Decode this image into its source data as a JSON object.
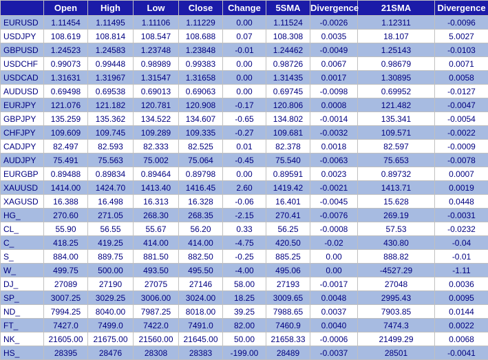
{
  "headers": [
    "",
    "Open",
    "High",
    "Low",
    "Close",
    "Change",
    "5SMA",
    "Divergence",
    "21SMA",
    "Divergence"
  ],
  "rows": [
    [
      "EURUSD",
      "1.11454",
      "1.11495",
      "1.11106",
      "1.11229",
      "0.00",
      "1.11524",
      "-0.0026",
      "1.12311",
      "-0.0096"
    ],
    [
      "USDJPY",
      "108.619",
      "108.814",
      "108.547",
      "108.688",
      "0.07",
      "108.308",
      "0.0035",
      "18.107",
      "5.0027"
    ],
    [
      "GBPUSD",
      "1.24523",
      "1.24583",
      "1.23748",
      "1.23848",
      "-0.01",
      "1.24462",
      "-0.0049",
      "1.25143",
      "-0.0103"
    ],
    [
      "USDCHF",
      "0.99073",
      "0.99448",
      "0.98989",
      "0.99383",
      "0.00",
      "0.98726",
      "0.0067",
      "0.98679",
      "0.0071"
    ],
    [
      "USDCAD",
      "1.31631",
      "1.31967",
      "1.31547",
      "1.31658",
      "0.00",
      "1.31435",
      "0.0017",
      "1.30895",
      "0.0058"
    ],
    [
      "AUDUSD",
      "0.69498",
      "0.69538",
      "0.69013",
      "0.69063",
      "0.00",
      "0.69745",
      "-0.0098",
      "0.69952",
      "-0.0127"
    ],
    [
      "EURJPY",
      "121.076",
      "121.182",
      "120.781",
      "120.908",
      "-0.17",
      "120.806",
      "0.0008",
      "121.482",
      "-0.0047"
    ],
    [
      "GBPJPY",
      "135.259",
      "135.362",
      "134.522",
      "134.607",
      "-0.65",
      "134.802",
      "-0.0014",
      "135.341",
      "-0.0054"
    ],
    [
      "CHFJPY",
      "109.609",
      "109.745",
      "109.289",
      "109.335",
      "-0.27",
      "109.681",
      "-0.0032",
      "109.571",
      "-0.0022"
    ],
    [
      "CADJPY",
      "82.497",
      "82.593",
      "82.333",
      "82.525",
      "0.01",
      "82.378",
      "0.0018",
      "82.597",
      "-0.0009"
    ],
    [
      "AUDJPY",
      "75.491",
      "75.563",
      "75.002",
      "75.064",
      "-0.45",
      "75.540",
      "-0.0063",
      "75.653",
      "-0.0078"
    ],
    [
      "EURGBP",
      "0.89488",
      "0.89834",
      "0.89464",
      "0.89798",
      "0.00",
      "0.89591",
      "0.0023",
      "0.89732",
      "0.0007"
    ],
    [
      "XAUUSD",
      "1414.00",
      "1424.70",
      "1413.40",
      "1416.45",
      "2.60",
      "1419.42",
      "-0.0021",
      "1413.71",
      "0.0019"
    ],
    [
      "XAGUSD",
      "16.388",
      "16.498",
      "16.313",
      "16.328",
      "-0.06",
      "16.401",
      "-0.0045",
      "15.628",
      "0.0448"
    ],
    [
      "HG_",
      "270.60",
      "271.05",
      "268.30",
      "268.35",
      "-2.15",
      "270.41",
      "-0.0076",
      "269.19",
      "-0.0031"
    ],
    [
      "CL_",
      "55.90",
      "56.55",
      "55.67",
      "56.20",
      "0.33",
      "56.25",
      "-0.0008",
      "57.53",
      "-0.0232"
    ],
    [
      "C_",
      "418.25",
      "419.25",
      "414.00",
      "414.00",
      "-4.75",
      "420.50",
      "-0.02",
      "430.80",
      "-0.04"
    ],
    [
      "S_",
      "884.00",
      "889.75",
      "881.50",
      "882.50",
      "-0.25",
      "885.25",
      "0.00",
      "888.82",
      "-0.01"
    ],
    [
      "W_",
      "499.75",
      "500.00",
      "493.50",
      "495.50",
      "-4.00",
      "495.06",
      "0.00",
      "-4527.29",
      "-1.11"
    ],
    [
      "DJ_",
      "27089",
      "27190",
      "27075",
      "27146",
      "58.00",
      "27193",
      "-0.0017",
      "27048",
      "0.0036"
    ],
    [
      "SP_",
      "3007.25",
      "3029.25",
      "3006.00",
      "3024.00",
      "18.25",
      "3009.65",
      "0.0048",
      "2995.43",
      "0.0095"
    ],
    [
      "ND_",
      "7994.25",
      "8040.00",
      "7987.25",
      "8018.00",
      "39.25",
      "7988.65",
      "0.0037",
      "7903.85",
      "0.0144"
    ],
    [
      "FT_",
      "7427.0",
      "7499.0",
      "7422.0",
      "7491.0",
      "82.00",
      "7460.9",
      "0.0040",
      "7474.3",
      "0.0022"
    ],
    [
      "NK_",
      "21605.00",
      "21675.00",
      "21560.00",
      "21645.00",
      "50.00",
      "21658.33",
      "-0.0006",
      "21499.29",
      "0.0068"
    ],
    [
      "HS_",
      "28395",
      "28476",
      "28308",
      "28383",
      "-199.00",
      "28489",
      "-0.0037",
      "28501",
      "-0.0041"
    ]
  ]
}
